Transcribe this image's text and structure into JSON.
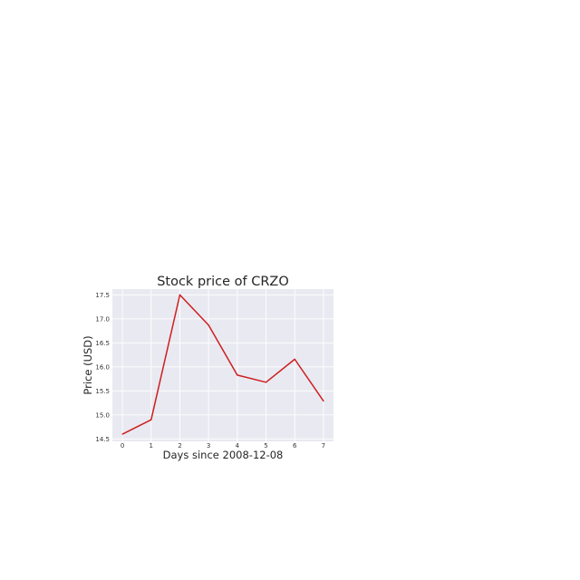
{
  "chart_data": {
    "type": "line",
    "title": "Stock price of CRZO",
    "xlabel": "Days since 2008-12-08",
    "ylabel": "Price (USD)",
    "x": [
      0,
      1,
      2,
      3,
      4,
      5,
      6,
      7
    ],
    "x_tick_labels": [
      "0",
      "1",
      "2",
      "3",
      "4",
      "5",
      "6",
      "7"
    ],
    "y_tick_labels": [
      "14.5",
      "15.0",
      "15.5",
      "16.0",
      "16.5",
      "17.0",
      "17.5"
    ],
    "y_ticks": [
      14.5,
      15.0,
      15.5,
      16.0,
      16.5,
      17.0,
      17.5
    ],
    "series": [
      {
        "values": [
          14.6,
          14.9,
          17.5,
          16.87,
          15.83,
          15.68,
          16.16,
          15.29
        ],
        "color": "#cc1f1f"
      }
    ],
    "xlim": [
      -0.35,
      7.35
    ],
    "ylim": [
      14.45,
      17.62
    ],
    "grid": true,
    "background": "#e9e9f1",
    "grid_color": "#ffffff"
  }
}
